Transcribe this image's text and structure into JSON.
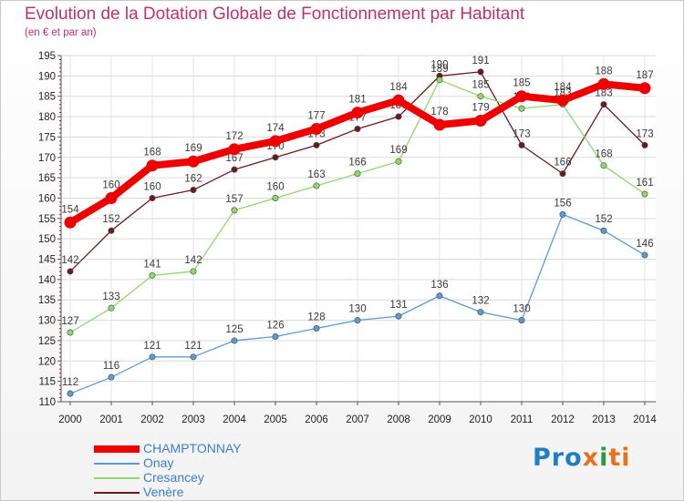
{
  "chart_data": {
    "type": "line",
    "title": "Evolution de la Dotation Globale de Fonctionnement par Habitant",
    "subtitle": "(en € et par an)",
    "xlabel": "",
    "ylabel": "",
    "x": [
      "2000",
      "2001",
      "2002",
      "2003",
      "2004",
      "2005",
      "2006",
      "2007",
      "2008",
      "2009",
      "2010",
      "2011",
      "2012",
      "2013",
      "2014"
    ],
    "ylim": [
      110,
      195
    ],
    "yticks": [
      110,
      115,
      120,
      125,
      130,
      135,
      140,
      145,
      150,
      155,
      160,
      165,
      170,
      175,
      180,
      185,
      190,
      195
    ],
    "grid": true,
    "legend_position": "bottom-left",
    "series": [
      {
        "name": "Venère",
        "color": "#6b1a1a",
        "values": [
          142,
          152,
          160,
          162,
          167,
          170,
          173,
          177,
          180,
          190,
          191,
          173,
          166,
          183,
          173
        ]
      },
      {
        "name": "Cresancey",
        "color": "#8ed86a",
        "values": [
          127,
          133,
          141,
          142,
          157,
          160,
          163,
          166,
          169,
          189,
          185,
          182,
          183,
          168,
          161
        ]
      },
      {
        "name": "Onay",
        "color": "#5b9bd5",
        "values": [
          112,
          116,
          121,
          121,
          125,
          126,
          128,
          130,
          131,
          136,
          132,
          130,
          156,
          152,
          146
        ]
      },
      {
        "name": "CHAMPTONNAY",
        "color": "#ee0000",
        "values": [
          154,
          160,
          168,
          169,
          172,
          174,
          177,
          181,
          184,
          178,
          179,
          185,
          184,
          188,
          187
        ]
      }
    ]
  },
  "legend": [
    {
      "name": "CHAMPTONNAY",
      "color": "#ee0000"
    },
    {
      "name": "Onay",
      "color": "#5b9bd5"
    },
    {
      "name": "Cresancey",
      "color": "#8ed86a"
    },
    {
      "name": "Venère",
      "color": "#6b1a1a"
    }
  ],
  "logo": {
    "part1": "Pro",
    "part2": "x",
    "part3": "i",
    "part4": "ti"
  }
}
